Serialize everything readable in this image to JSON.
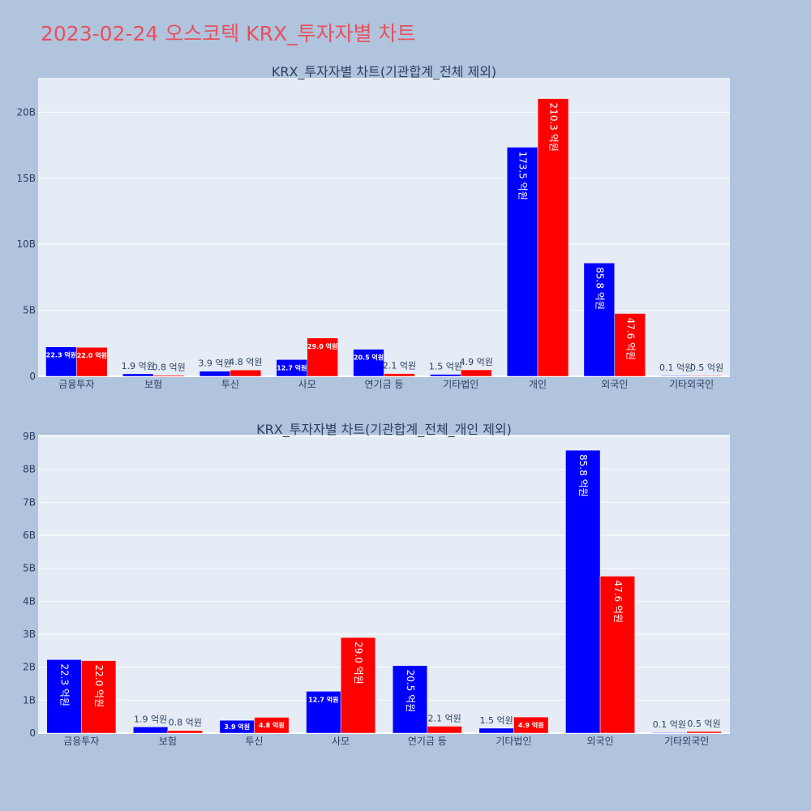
{
  "page_title": "2023-02-24 오스코텍 KRX_투자자별 차트",
  "colors": {
    "series_a": "#0000ff",
    "series_b": "#ff0000",
    "plot_bg": "#e5ecf6",
    "page_bg": "#b0c4de",
    "title": "#e8505b"
  },
  "chart_data": [
    {
      "type": "bar",
      "title": "KRX_투자자별 차트(기관합계_전체 제외)",
      "categories": [
        "금융투자",
        "보험",
        "투신",
        "사모",
        "연기금 등",
        "기타법인",
        "개인",
        "외국인",
        "기타외국인"
      ],
      "series": [
        {
          "values": [
            2230000000,
            190000000,
            390000000,
            1270000000,
            2050000000,
            150000000,
            17350000000,
            8580000000,
            10000000
          ]
        },
        {
          "values": [
            2200000000,
            80000000,
            480000000,
            2900000000,
            210000000,
            490000000,
            21030000000,
            4760000000,
            50000000
          ]
        }
      ],
      "data_labels": [
        [
          "22.3 억원",
          "1.9 억원",
          "3.9 억원",
          "12.7 억원",
          "20.5 억원",
          "1.5 억원",
          "173.5 억원",
          "85.8 억원",
          "0.1 억원"
        ],
        [
          "22.0 억원",
          "0.8 억원",
          "4.8 억원",
          "29.0 억원",
          "2.1 억원",
          "4.9 억원",
          "210.3 억원",
          "47.6 억원",
          "0.5 억원"
        ]
      ],
      "y_ticks": [
        "0",
        "5B",
        "10B",
        "15B",
        "20B"
      ],
      "ylim": [
        0,
        22600000000
      ],
      "grid": true
    },
    {
      "type": "bar",
      "title": "KRX_투자자별 차트(기관합계_전체_개인 제외)",
      "categories": [
        "금융투자",
        "보험",
        "투신",
        "사모",
        "연기금 등",
        "기타법인",
        "외국인",
        "기타외국인"
      ],
      "series": [
        {
          "values": [
            2230000000,
            190000000,
            390000000,
            1270000000,
            2050000000,
            150000000,
            8580000000,
            10000000
          ]
        },
        {
          "values": [
            2200000000,
            80000000,
            480000000,
            2900000000,
            210000000,
            490000000,
            4760000000,
            50000000
          ]
        }
      ],
      "data_labels": [
        [
          "22.3 억원",
          "1.9 억원",
          "3.9 억원",
          "12.7 억원",
          "20.5 억원",
          "1.5 억원",
          "85.8 억원",
          "0.1 억원"
        ],
        [
          "22.0 억원",
          "0.8 억원",
          "4.8 억원",
          "29.0 억원",
          "2.1 억원",
          "4.9 억원",
          "47.6 억원",
          "0.5 억원"
        ]
      ],
      "y_ticks": [
        "0",
        "1B",
        "2B",
        "3B",
        "4B",
        "5B",
        "6B",
        "7B",
        "8B",
        "9B"
      ],
      "ylim": [
        0,
        9050000000
      ],
      "grid": true
    }
  ]
}
